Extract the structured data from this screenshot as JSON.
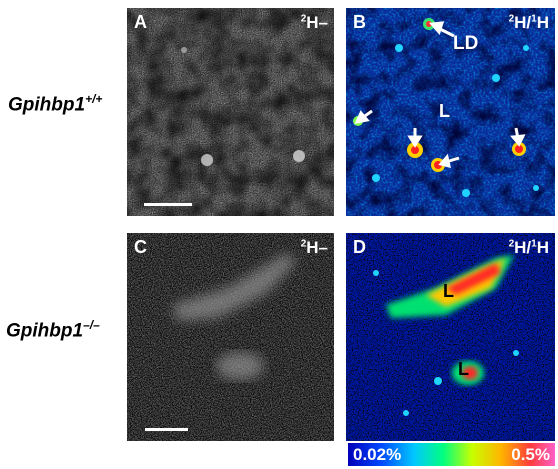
{
  "rows": [
    {
      "genotype": "Gpihbp1",
      "superscript": "+/+"
    },
    {
      "genotype": "Gpihbp1",
      "superscript": "–/–"
    }
  ],
  "panels": {
    "A": {
      "letter": "A",
      "isotope_main": "H",
      "isotope_sup": "2",
      "isotope_suffix": "–"
    },
    "B": {
      "letter": "B",
      "ratio_sup1": "2",
      "ratio_main1": "H/",
      "ratio_sup2": "1",
      "ratio_main2": "H",
      "labels": [
        "LD",
        "L"
      ]
    },
    "C": {
      "letter": "C",
      "isotope_main": "H",
      "isotope_sup": "2",
      "isotope_suffix": "–"
    },
    "D": {
      "letter": "D",
      "ratio_sup1": "2",
      "ratio_main1": "H/",
      "ratio_sup2": "1",
      "ratio_main2": "H",
      "labels": [
        "L",
        "L"
      ]
    }
  },
  "colorbar": {
    "min": "0.02%",
    "max": "0.5%"
  },
  "colors": {
    "panel_bg": "#000000",
    "blue_field": "#0a2a9a",
    "arrow": "#ffffff"
  }
}
